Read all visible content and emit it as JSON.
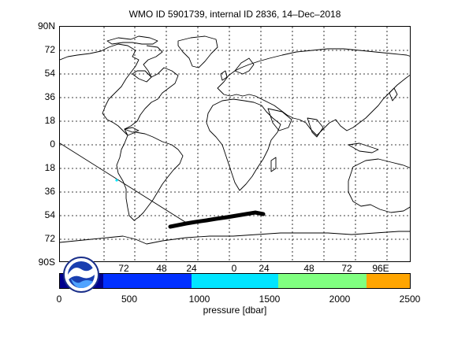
{
  "title": "WMO ID 5901739, internal ID 2836, 14–Dec–2018",
  "map": {
    "lat_labels": [
      "90N",
      "72",
      "54",
      "36",
      "18",
      "0",
      "18",
      "36",
      "54",
      "72",
      "90S"
    ],
    "lon_labels": [
      "72",
      "48",
      "24",
      "0",
      "24",
      "48",
      "72",
      "96E"
    ],
    "grid": "dashed",
    "land_color": "#ffffff",
    "coast_color": "#000000",
    "track_color": "#000000"
  },
  "colorbar": {
    "label": "pressure [dbar]",
    "ticks": [
      "0",
      "500",
      "1000",
      "1500",
      "2000",
      "2500"
    ],
    "range": [
      0,
      2500
    ],
    "bands": [
      {
        "from": 0,
        "to": 80,
        "color": "#00008f"
      },
      {
        "from": 80,
        "to": 310,
        "color": "#000090"
      },
      {
        "from": 310,
        "to": 940,
        "color": "#0030ff"
      },
      {
        "from": 940,
        "to": 1560,
        "color": "#00e5ff"
      },
      {
        "from": 1560,
        "to": 2190,
        "color": "#80ff80"
      },
      {
        "from": 2190,
        "to": 2500,
        "color": "#ffa500"
      }
    ]
  },
  "logo": {
    "icon": "noaa-logo"
  }
}
